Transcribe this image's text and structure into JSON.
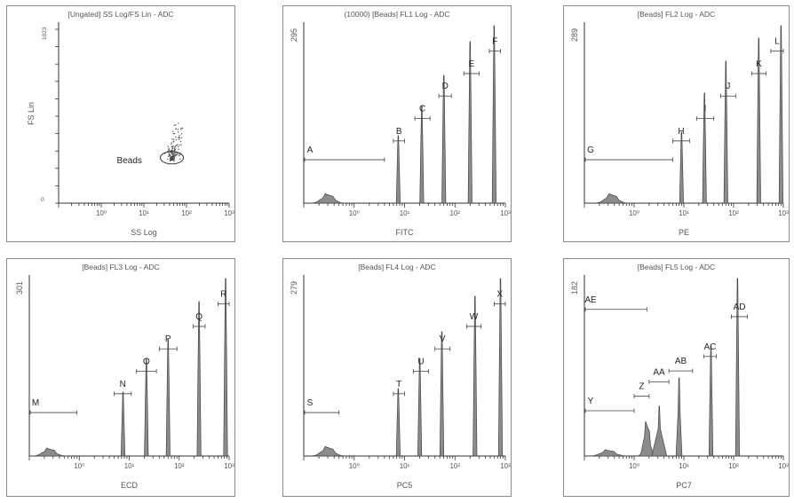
{
  "chart_data": [
    {
      "type": "scatter",
      "title": "[Ungated] SS Log/FS Lin - ADC",
      "xlabel": "SS Log",
      "ylabel": "FS Lin",
      "x_scale": "log",
      "xlim": [
        0.1,
        1000
      ],
      "ylim": [
        0,
        1023
      ],
      "x_tick_labels": [
        "10⁰",
        "10¹",
        "10²",
        "10³"
      ],
      "y_tick_labels": [
        "0",
        "1023"
      ],
      "gates": [
        {
          "name": "Beads",
          "label": "S"
        }
      ]
    },
    {
      "type": "histogram",
      "title": "(10000) [Beads] FL1 Log - ADC",
      "xlabel": "FITC",
      "x_scale": "log",
      "xlim": [
        0.1,
        1000
      ],
      "ymax_label": "295",
      "x_tick_labels": [
        "10⁰",
        "10¹",
        "10²",
        "10³"
      ],
      "peaks": [
        {
          "x": 0.3,
          "height": 0.06,
          "width": 0.7
        },
        {
          "x": 7.5,
          "height": 0.38
        },
        {
          "x": 22,
          "height": 0.55
        },
        {
          "x": 60,
          "height": 0.72
        },
        {
          "x": 200,
          "height": 0.91
        },
        {
          "x": 600,
          "height": 1.0
        }
      ],
      "markers": [
        {
          "label": "A",
          "x0": 0.1,
          "x1": 4
        },
        {
          "label": "B",
          "x0": 6,
          "x1": 10
        },
        {
          "label": "C",
          "x0": 16,
          "x1": 32
        },
        {
          "label": "D",
          "x0": 48,
          "x1": 85
        },
        {
          "label": "E",
          "x0": 150,
          "x1": 300
        },
        {
          "label": "F",
          "x0": 480,
          "x1": 800
        }
      ]
    },
    {
      "type": "histogram",
      "title": "[Beads] FL2 Log - ADC",
      "xlabel": "PE",
      "x_scale": "log",
      "xlim": [
        0.1,
        1000
      ],
      "ymax_label": "289",
      "x_tick_labels": [
        "10⁰",
        "10¹",
        "10²",
        "10³"
      ],
      "peaks": [
        {
          "x": 0.35,
          "height": 0.06,
          "width": 0.7
        },
        {
          "x": 9,
          "height": 0.4
        },
        {
          "x": 26,
          "height": 0.62
        },
        {
          "x": 70,
          "height": 0.8
        },
        {
          "x": 320,
          "height": 0.93
        },
        {
          "x": 900,
          "height": 1.0
        }
      ],
      "markers": [
        {
          "label": "G",
          "x0": 0.1,
          "x1": 6
        },
        {
          "label": "H",
          "x0": 6,
          "x1": 13
        },
        {
          "label": "I",
          "x0": 18,
          "x1": 40
        },
        {
          "label": "J",
          "x0": 55,
          "x1": 110
        },
        {
          "label": "K",
          "x0": 230,
          "x1": 450
        },
        {
          "label": "L",
          "x0": 560,
          "x1": 1000
        }
      ]
    },
    {
      "type": "histogram",
      "title": "[Beads] FL3 Log - ADC",
      "xlabel": "ECD",
      "x_scale": "log",
      "xlim": [
        0.1,
        1000
      ],
      "ymax_label": "301",
      "x_tick_labels": [
        "10⁰",
        "10¹",
        "10²",
        "10³"
      ],
      "peaks": [
        {
          "x": 0.25,
          "height": 0.05,
          "width": 0.7
        },
        {
          "x": 7.5,
          "height": 0.36
        },
        {
          "x": 22,
          "height": 0.55
        },
        {
          "x": 60,
          "height": 0.66
        },
        {
          "x": 250,
          "height": 0.87
        },
        {
          "x": 850,
          "height": 1.0
        }
      ],
      "markers": [
        {
          "label": "M",
          "x0": 0.1,
          "x1": 0.9
        },
        {
          "label": "N",
          "x0": 5,
          "x1": 11
        },
        {
          "label": "O",
          "x0": 14,
          "x1": 35
        },
        {
          "label": "P",
          "x0": 40,
          "x1": 90
        },
        {
          "label": "Q",
          "x0": 190,
          "x1": 330
        },
        {
          "label": "R",
          "x0": 600,
          "x1": 1000
        }
      ]
    },
    {
      "type": "histogram",
      "title": "[Beads] FL4 Log - ADC",
      "xlabel": "PC5",
      "x_scale": "log",
      "xlim": [
        0.1,
        1000
      ],
      "ymax_label": "279",
      "x_tick_labels": [
        "10⁰",
        "10¹",
        "10²",
        "10³"
      ],
      "peaks": [
        {
          "x": 0.3,
          "height": 0.06,
          "width": 0.7
        },
        {
          "x": 7.5,
          "height": 0.38
        },
        {
          "x": 20,
          "height": 0.55
        },
        {
          "x": 55,
          "height": 0.7
        },
        {
          "x": 250,
          "height": 0.9
        },
        {
          "x": 800,
          "height": 1.0
        }
      ],
      "markers": [
        {
          "label": "S",
          "x0": 0.1,
          "x1": 0.5
        },
        {
          "label": "T",
          "x0": 6,
          "x1": 10
        },
        {
          "label": "U",
          "x0": 15,
          "x1": 30
        },
        {
          "label": "V",
          "x0": 40,
          "x1": 80
        },
        {
          "label": "W",
          "x0": 170,
          "x1": 330
        },
        {
          "label": "X",
          "x0": 600,
          "x1": 1000
        }
      ]
    },
    {
      "type": "histogram",
      "title": "[Beads] FL5 Log - ADC",
      "xlabel": "PC7",
      "x_scale": "log",
      "xlim": [
        0.1,
        1000
      ],
      "ymax_label": "182",
      "x_tick_labels": [
        "10⁰",
        "10¹",
        "10²",
        "10³"
      ],
      "peaks": [
        {
          "x": 0.3,
          "height": 0.04,
          "width": 0.8
        },
        {
          "x": 1.8,
          "height": 0.22,
          "width": 0.35
        },
        {
          "x": 3.2,
          "height": 0.28,
          "width": 0.3
        },
        {
          "x": 8,
          "height": 0.44,
          "width": 0.12
        },
        {
          "x": 35,
          "height": 0.62
        },
        {
          "x": 120,
          "height": 1.0
        }
      ],
      "markers": [
        {
          "label": "Y",
          "x0": 0.1,
          "x1": 1.0
        },
        {
          "label": "Z",
          "x0": 1.0,
          "x1": 2.0
        },
        {
          "label": "AA",
          "x0": 2.0,
          "x1": 5.0
        },
        {
          "label": "AB",
          "x0": 5.0,
          "x1": 15
        },
        {
          "label": "AC",
          "x0": 25,
          "x1": 45
        },
        {
          "label": "AD",
          "x0": 90,
          "x1": 190
        },
        {
          "label": "AE",
          "x0": 0.1,
          "x1": 1.8
        }
      ]
    }
  ]
}
